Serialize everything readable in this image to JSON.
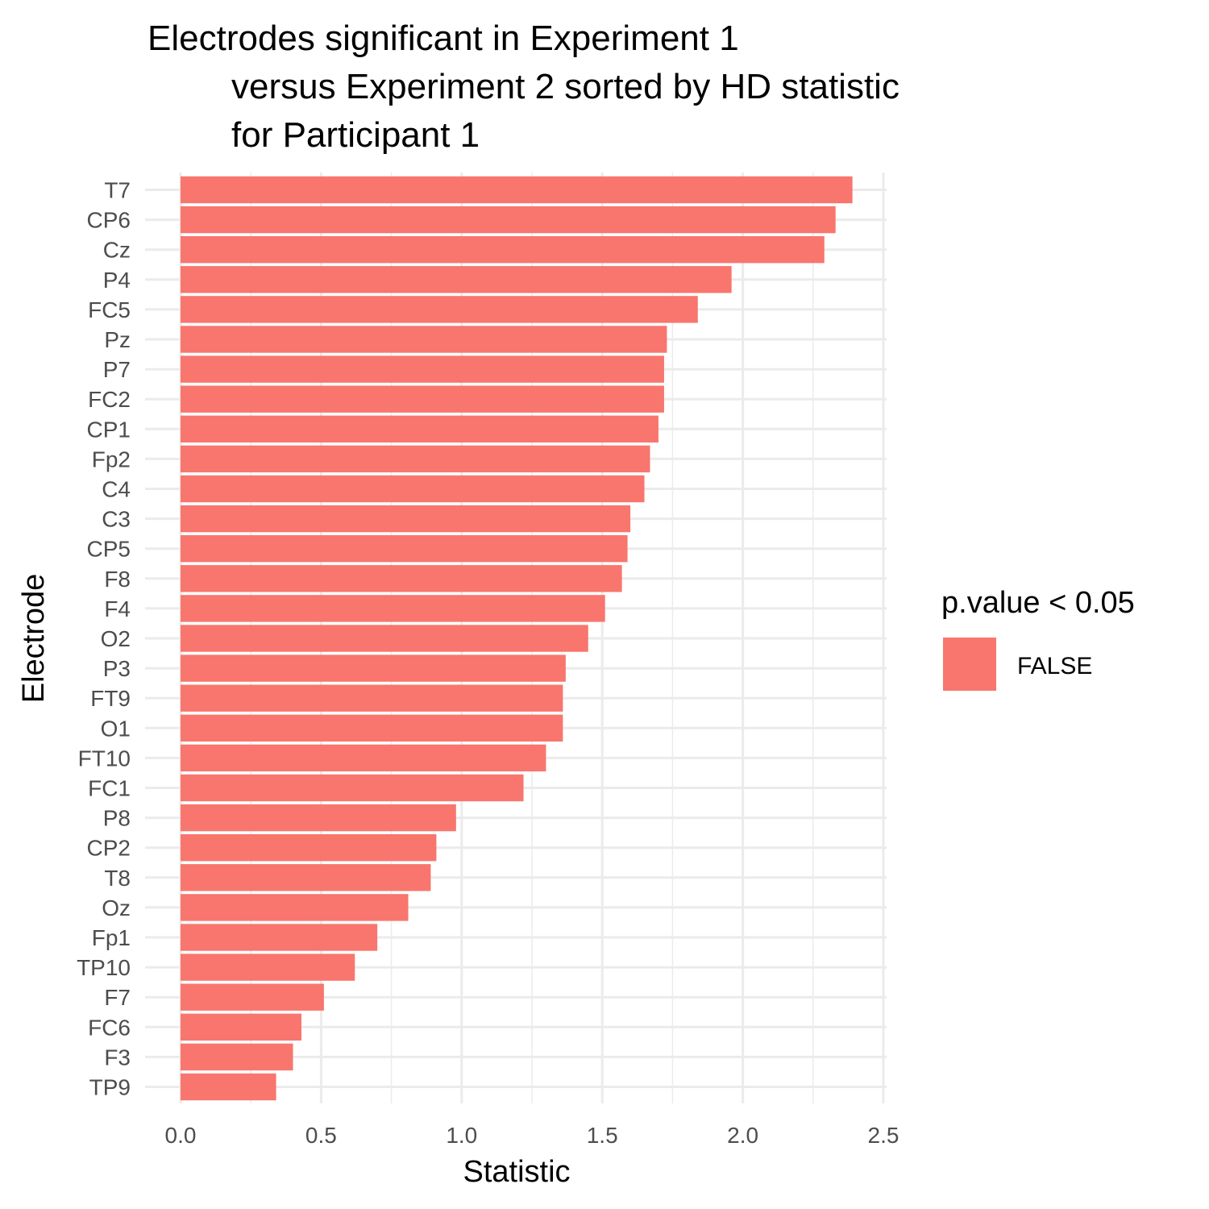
{
  "chart_data": {
    "type": "bar",
    "orientation": "horizontal",
    "title_lines": [
      "Electrodes significant in Experiment 1",
      "versus Experiment 2 sorted by HD statistic",
      "for Participant 1"
    ],
    "xlabel": "Statistic",
    "ylabel": "Electrode",
    "xlim": [
      0,
      2.5
    ],
    "xticks": [
      "0.0",
      "0.5",
      "1.0",
      "1.5",
      "2.0",
      "2.5"
    ],
    "grid": true,
    "categories": [
      "T7",
      "CP6",
      "Cz",
      "P4",
      "FC5",
      "Pz",
      "P7",
      "FC2",
      "CP1",
      "Fp2",
      "C4",
      "C3",
      "CP5",
      "F8",
      "F4",
      "O2",
      "P3",
      "FT9",
      "O1",
      "FT10",
      "FC1",
      "P8",
      "CP2",
      "T8",
      "Oz",
      "Fp1",
      "TP10",
      "F7",
      "FC6",
      "F3",
      "TP9"
    ],
    "values": [
      2.39,
      2.33,
      2.29,
      1.96,
      1.84,
      1.73,
      1.72,
      1.72,
      1.7,
      1.67,
      1.65,
      1.6,
      1.59,
      1.57,
      1.51,
      1.45,
      1.37,
      1.36,
      1.36,
      1.3,
      1.22,
      0.98,
      0.91,
      0.89,
      0.81,
      0.7,
      0.62,
      0.51,
      0.43,
      0.4,
      0.34
    ],
    "bar_color": "#F8766D",
    "legend": {
      "title": "p.value < 0.05",
      "entries": [
        {
          "label": "FALSE",
          "color": "#F8766D"
        }
      ],
      "placement": "right"
    }
  }
}
